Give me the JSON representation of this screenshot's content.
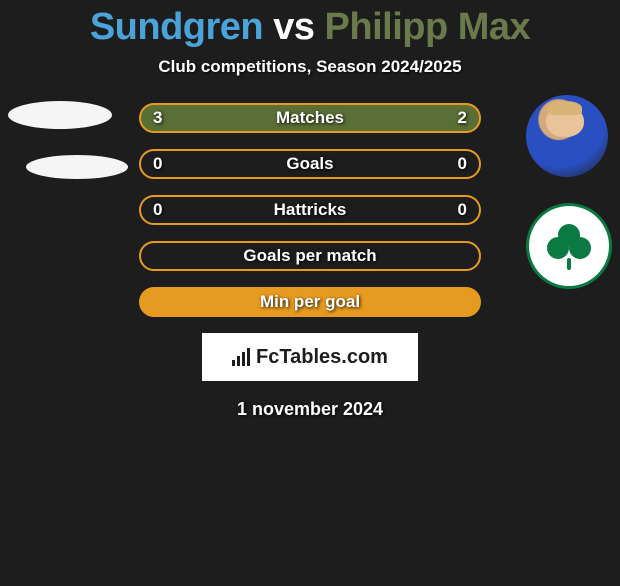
{
  "title": {
    "player1": "Sundgren",
    "vs": "vs",
    "player2": "Philipp Max",
    "color1": "#4aa3d9",
    "colorVs": "#ffffff",
    "color2": "#6a7a4a"
  },
  "subtitle": "Club competitions, Season 2024/2025",
  "rows": [
    {
      "left": "3",
      "label": "Matches",
      "right": "2",
      "bg": "#5a6f35",
      "border": "#e79a20"
    },
    {
      "left": "0",
      "label": "Goals",
      "right": "0",
      "bg": "#1d1d1d",
      "border": "#e79a20"
    },
    {
      "left": "0",
      "label": "Hattricks",
      "right": "0",
      "bg": "#1d1d1d",
      "border": "#e79a20"
    },
    {
      "left": "",
      "label": "Goals per match",
      "right": "",
      "bg": "#1d1d1d",
      "border": "#e79a20"
    },
    {
      "left": "",
      "label": "Min per goal",
      "right": "",
      "bg": "#e79a20",
      "border": "#e79a20"
    }
  ],
  "logo": "FcTables.com",
  "date": "1 november 2024",
  "colors": {
    "background": "#1d1d1d",
    "accent": "#e79a20",
    "clubGreen": "#0a7a42"
  },
  "rightPlayerName": "philipp-max-avatar",
  "rightClubName": "panathinaikos-badge"
}
